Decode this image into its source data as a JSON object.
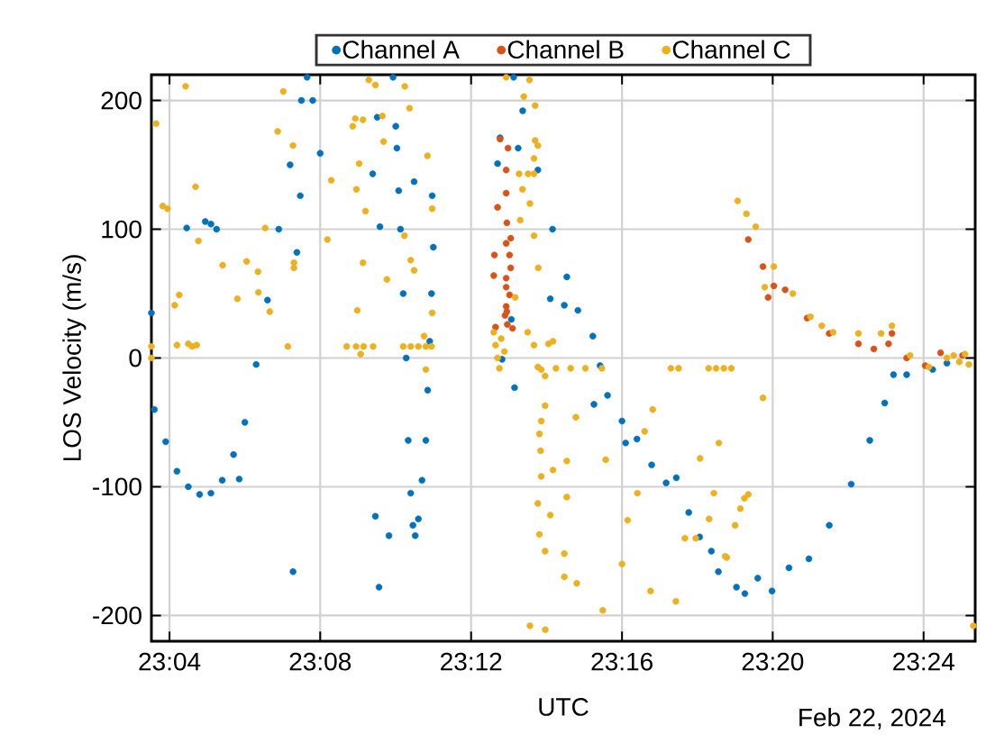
{
  "chart_data": {
    "type": "scatter",
    "xlabel": "UTC",
    "ylabel": "LOS Velocity (m/s)",
    "annotations": [
      "Feb 22, 2024"
    ],
    "xlim": [
      23.0587,
      23.4228
    ],
    "xticks": [
      {
        "value": 23.0667,
        "label": "23:04"
      },
      {
        "value": 23.1333,
        "label": "23:08"
      },
      {
        "value": 23.2,
        "label": "23:12"
      },
      {
        "value": 23.2667,
        "label": "23:16"
      },
      {
        "value": 23.3333,
        "label": "23:20"
      },
      {
        "value": 23.4,
        "label": "23:24"
      }
    ],
    "ylim": [
      -220,
      220
    ],
    "yticks": [
      -200,
      -100,
      0,
      100,
      200
    ],
    "grid": true,
    "legend": "top",
    "marker": "circle",
    "series": [
      {
        "name": "Channel A",
        "color": "#0072bd",
        "x": [
          23.06,
          23.065,
          23.07,
          23.075,
          23.08,
          23.085,
          23.09,
          23.095,
          23.1,
          23.105,
          23.11,
          23.115,
          23.12,
          23.125,
          23.1275,
          23.13,
          23.0587,
          23.0743,
          23.0825,
          23.085,
          23.0875,
          23.0975,
          23.1213,
          23.1245,
          23.123,
          23.1333,
          23.1577,
          23.1637,
          23.1593,
          23.1565,
          23.1585,
          23.1597,
          23.1748,
          23.1828,
          23.1655,
          23.1667,
          23.1672,
          23.168,
          23.1688,
          23.17,
          23.1713,
          23.1722,
          23.1733,
          23.1743,
          23.1753,
          23.1767,
          23.1783,
          23.18,
          23.1808,
          23.1817,
          23.1825,
          23.1833,
          23.2128,
          23.2208,
          23.2117,
          23.235,
          23.2412,
          23.2178,
          23.2137,
          23.2192,
          23.2543,
          23.2188,
          23.2228,
          23.2295,
          23.236,
          23.2423,
          23.2472,
          23.2538,
          23.257,
          23.2603,
          23.2667,
          23.2683,
          23.2733,
          23.2798,
          23.2862,
          23.2907,
          23.2962,
          23.301,
          23.3093,
          23.3173,
          23.3062,
          23.321,
          23.3267,
          23.333,
          23.3405,
          23.3493,
          23.3583,
          23.368,
          23.3762,
          23.3828,
          23.3867,
          23.3925,
          23.404,
          23.4103
        ],
        "values": [
          -40,
          -65,
          -88,
          -100,
          -106,
          -105,
          -95,
          -75,
          -50,
          -5,
          45,
          100,
          150,
          200,
          218,
          200,
          35,
          101,
          106,
          104,
          100,
          -94,
          -166,
          126,
          82,
          159,
          -123,
          -138,
          -178,
          143,
          187,
          102,
          137,
          126,
          218,
          180,
          163,
          130,
          100,
          50,
          0,
          -64,
          -105,
          -130,
          -138,
          -125,
          -95,
          -64,
          -25,
          13,
          50,
          86,
          171,
          163,
          151,
          46,
          41,
          30,
          -1,
          -23,
          -36,
          218,
          192,
          146,
          100,
          63,
          37,
          17,
          -6,
          -29,
          -49,
          -66,
          -63,
          -83,
          -97,
          -93,
          -120,
          -139,
          -166,
          -178,
          -150,
          -183,
          -171,
          -181,
          -163,
          -156,
          -130,
          -98,
          -64,
          -35,
          -13,
          -13,
          -9,
          -4
        ]
      },
      {
        "name": "Channel B",
        "color": "#d95319",
        "x": [
          23.3225,
          23.329,
          23.3313,
          23.3338,
          23.3388,
          23.3485,
          23.3583,
          23.3712,
          23.378,
          23.3845,
          23.386,
          23.3925,
          23.4007,
          23.4075,
          23.4172,
          23.2128,
          23.2163,
          23.2155,
          23.2155,
          23.2117,
          23.2158,
          23.2175,
          23.2155,
          23.2103,
          23.217,
          23.2175,
          23.21,
          23.2155,
          23.2155,
          23.217,
          23.2155,
          23.2158,
          23.215,
          23.2183,
          23.2108,
          23.216
        ],
        "values": [
          92,
          71,
          47,
          56,
          53,
          31,
          19,
          11,
          7,
          11,
          19,
          0,
          -6,
          4,
          2,
          170,
          163,
          146,
          128,
          117,
          105,
          93,
          89,
          80,
          80,
          70,
          64,
          55,
          62,
          49,
          40,
          36,
          33,
          23,
          24,
          26
        ]
      },
      {
        "name": "Channel C",
        "color": "#edb120",
        "x": [
          23.0738,
          23.0608,
          23.0637,
          23.0658,
          23.0782,
          23.0795,
          23.071,
          23.069,
          23.0587,
          23.0587,
          23.07,
          23.075,
          23.0767,
          23.0787,
          23.0902,
          23.0967,
          23.1008,
          23.1058,
          23.106,
          23.111,
          23.119,
          23.109,
          23.1145,
          23.117,
          23.1213,
          23.1217,
          23.1217,
          23.1365,
          23.1382,
          23.1548,
          23.1577,
          23.1707,
          23.1477,
          23.1488,
          23.1522,
          23.1728,
          23.1608,
          23.1613,
          23.1505,
          23.1493,
          23.1533,
          23.1807,
          23.1828,
          23.1522,
          23.1628,
          23.1748,
          23.1733,
          23.1705,
          23.1497,
          23.1828,
          23.145,
          23.1492,
          23.1525,
          23.1567,
          23.1512,
          23.17,
          23.1733,
          23.1767,
          23.18,
          23.1825,
          23.18,
          23.1792,
          23.2155,
          23.2258,
          23.2233,
          23.2283,
          23.2283,
          23.2295,
          23.2278,
          23.2212,
          23.2252,
          23.2278,
          23.2227,
          23.226,
          23.2217,
          23.2278,
          23.2297,
          23.2195,
          23.21,
          23.2108,
          23.2117,
          23.2133,
          23.2147,
          23.2125,
          23.225,
          23.2278,
          23.2342,
          23.2362,
          23.2295,
          23.231,
          23.2375,
          23.244,
          23.2505,
          23.2578,
          23.2327,
          23.2327,
          23.231,
          23.2302,
          23.2307,
          23.231,
          23.2463,
          23.2423,
          23.2362,
          23.2295,
          23.235,
          23.2423,
          23.2302,
          23.2327,
          23.2412,
          23.2412,
          23.2467,
          23.226,
          23.2328,
          23.2582,
          23.2595,
          23.2667,
          23.2692,
          23.2735,
          23.2767,
          23.2803,
          23.2793,
          23.2905,
          23.2945,
          23.2993,
          23.3012,
          23.3052,
          23.3073,
          23.3095,
          23.3123,
          23.2883,
          23.2917,
          23.305,
          23.3083,
          23.3117,
          23.315,
          23.329,
          23.3225,
          23.3208,
          23.319,
          23.3167,
          23.313,
          23.3298,
          23.422,
          23.3178,
          23.3217,
          23.3258,
          23.3338,
          23.3422,
          23.35,
          23.355,
          23.36,
          23.3712,
          23.3812,
          23.386,
          23.394,
          23.4023,
          23.4103,
          23.4133,
          23.4158,
          23.4183,
          23.42
        ],
        "values": [
          211,
          182,
          118,
          116,
          133,
          91,
          49,
          41,
          9,
          0,
          10,
          11,
          9,
          10,
          72,
          46,
          75,
          67,
          51,
          36,
          9,
          101,
          176,
          207,
          165,
          74,
          70,
          92,
          138,
          216,
          212,
          211,
          180,
          186,
          185,
          194,
          188,
          168,
          151,
          131,
          114,
          157,
          116,
          74,
          61,
          68,
          76,
          95,
          37,
          35,
          9,
          9,
          9,
          9,
          3,
          9,
          9,
          9,
          9,
          9,
          -9,
          17,
          218,
          216,
          203,
          196,
          169,
          165,
          155,
          143,
          143,
          143,
          131,
          120,
          107,
          95,
          70,
          47,
          20,
          10,
          0,
          15,
          5,
          -8,
          20,
          10,
          11,
          13,
          -7,
          -9,
          -8,
          -8,
          -8,
          -8,
          -14,
          -37,
          -49,
          -59,
          -72,
          -92,
          -46,
          -80,
          -87,
          -113,
          -122,
          -108,
          -137,
          -150,
          -152,
          -170,
          -175,
          -208,
          -211,
          -196,
          -79,
          -160,
          -126,
          -105,
          -57,
          -40,
          -181,
          -189,
          -140,
          -140,
          -78,
          -125,
          -105,
          -66,
          -154,
          -8,
          -8,
          -8,
          -8,
          -8,
          -8,
          -31,
          -106,
          -109,
          -117,
          -130,
          -155,
          55,
          -208,
          122,
          112,
          102,
          71,
          50,
          32,
          25,
          20,
          19,
          19,
          25,
          2,
          -7,
          0,
          2,
          -3,
          3,
          -5
        ]
      }
    ]
  }
}
